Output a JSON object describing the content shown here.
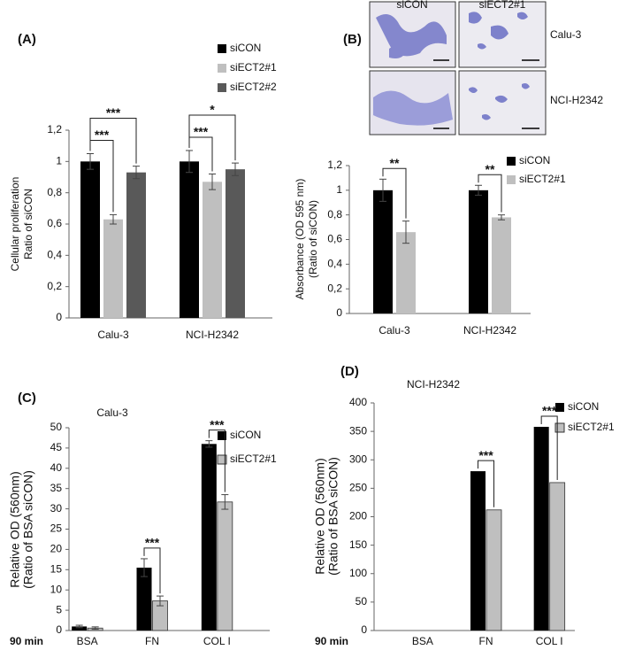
{
  "images": {
    "columns": [
      "siCON",
      "siECT2#1"
    ],
    "rows": [
      "Calu-3",
      "NCI-H2342"
    ]
  },
  "chart_data": [
    {
      "type": "bar",
      "panel_label": "(A)",
      "ylabel": [
        "Cellular proliferation",
        "Ratio of siCON"
      ],
      "categories": [
        "Calu-3",
        "NCI-H2342"
      ],
      "series": [
        {
          "name": "siCON",
          "color": "#000000",
          "values": [
            1.0,
            1.0
          ],
          "errors": [
            0.05,
            0.07
          ]
        },
        {
          "name": "siECT2#1",
          "color": "#bfbfbf",
          "values": [
            0.63,
            0.87
          ],
          "errors": [
            0.03,
            0.05
          ]
        },
        {
          "name": "siECT2#2",
          "color": "#595959",
          "values": [
            0.93,
            0.95
          ],
          "errors": [
            0.04,
            0.04
          ]
        }
      ],
      "ylim": [
        0,
        1.2
      ],
      "yticks": [
        0,
        {
          "value": 0.2,
          "label": "0,2"
        },
        {
          "value": 0.4,
          "label": "0,4"
        },
        {
          "value": 0.6,
          "label": "0,6"
        },
        {
          "value": 0.8,
          "label": "0,8"
        },
        1,
        {
          "value": 1.2,
          "label": "1,2"
        }
      ],
      "legend": "upper right",
      "annotations": [
        "***",
        "***",
        "*",
        "***"
      ]
    },
    {
      "type": "bar",
      "panel_label": "(B)",
      "ylabel": [
        "Absorbance (OD 595 nm)",
        "(Ratio of siCON)"
      ],
      "categories": [
        "Calu-3",
        "NCI-H2342"
      ],
      "series": [
        {
          "name": "siCON",
          "color": "#000000",
          "values": [
            1.0,
            1.0
          ],
          "errors": [
            0.09,
            0.04
          ]
        },
        {
          "name": "siECT2#1",
          "color": "#bfbfbf",
          "values": [
            0.66,
            0.78
          ],
          "errors": [
            0.09,
            0.02
          ]
        }
      ],
      "ylim": [
        0,
        1.2
      ],
      "yticks": [
        0,
        {
          "value": 0.2,
          "label": "0,2"
        },
        {
          "value": 0.4,
          "label": "0,4"
        },
        {
          "value": 0.6,
          "label": "0,6"
        },
        {
          "value": 0.8,
          "label": "0,8"
        },
        1,
        {
          "value": 1.2,
          "label": "1,2"
        }
      ],
      "legend": "upper right",
      "annotations": [
        "**",
        "**"
      ]
    },
    {
      "type": "bar",
      "panel_label": "(C)",
      "title": "Calu-3",
      "ylabel": [
        "Relative OD (560nm)",
        "(Ratio of BSA siCON)"
      ],
      "row_label": "90 min",
      "categories": [
        "BSA",
        "FN",
        "COL I"
      ],
      "series": [
        {
          "name": "siCON",
          "color": "#000000",
          "values": [
            1.0,
            15.5,
            46.0
          ],
          "errors": [
            0.3,
            2.2,
            0.8
          ]
        },
        {
          "name": "siECT2#1",
          "color": "#bfbfbf",
          "values": [
            0.6,
            7.3,
            31.7
          ],
          "errors": [
            0.3,
            1.2,
            1.8
          ]
        }
      ],
      "ylim": [
        0,
        50
      ],
      "yticks": [
        0,
        5,
        10,
        15,
        20,
        25,
        30,
        35,
        40,
        45,
        50
      ],
      "legend": "upper right",
      "annotations": [
        "***",
        "***"
      ]
    },
    {
      "type": "bar",
      "panel_label": "(D)",
      "title": "NCI-H2342",
      "ylabel": [
        "Relative OD (560nm)",
        "(Ratio of BSA siCON)"
      ],
      "row_label": "90 min",
      "categories": [
        "BSA",
        "FN",
        "COL I"
      ],
      "series": [
        {
          "name": "siCON",
          "color": "#000000",
          "values": [
            0,
            280,
            358
          ]
        },
        {
          "name": "siECT2#1",
          "color": "#bfbfbf",
          "values": [
            0,
            212,
            260
          ]
        }
      ],
      "ylim": [
        0,
        400
      ],
      "yticks": [
        0,
        50,
        100,
        150,
        200,
        250,
        300,
        350,
        400
      ],
      "legend": "upper right",
      "annotations": [
        "***",
        "***"
      ]
    }
  ]
}
